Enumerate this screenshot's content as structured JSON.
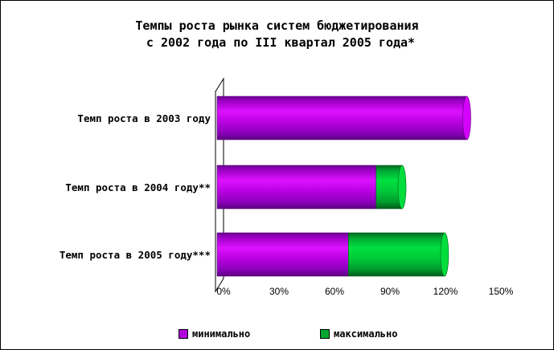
{
  "title": {
    "line1": "Темпы роста рынка систем бюджетирования",
    "line2": " с 2002 года по III квартал 2005 года*"
  },
  "chart_data": {
    "type": "bar",
    "orientation": "horizontal",
    "stacked": true,
    "style": "3d-cylinder",
    "categories": [
      "Темп роста в 2003 году",
      "Темп роста в 2004 году**",
      "Темп роста в 2005 году***"
    ],
    "series": [
      {
        "name": "минимально",
        "values": [
          135,
          86,
          71
        ],
        "color": "#cc00ee"
      },
      {
        "name": "максимально",
        "values": [
          0,
          14,
          52
        ],
        "color": "#00cc33"
      }
    ],
    "xlim": [
      0,
      150
    ],
    "xticks": [
      "0%",
      "30%",
      "60%",
      "90%",
      "120%",
      "150%"
    ],
    "xtick_values": [
      0,
      30,
      60,
      90,
      120,
      150
    ],
    "legend_position": "bottom",
    "grid": false
  }
}
